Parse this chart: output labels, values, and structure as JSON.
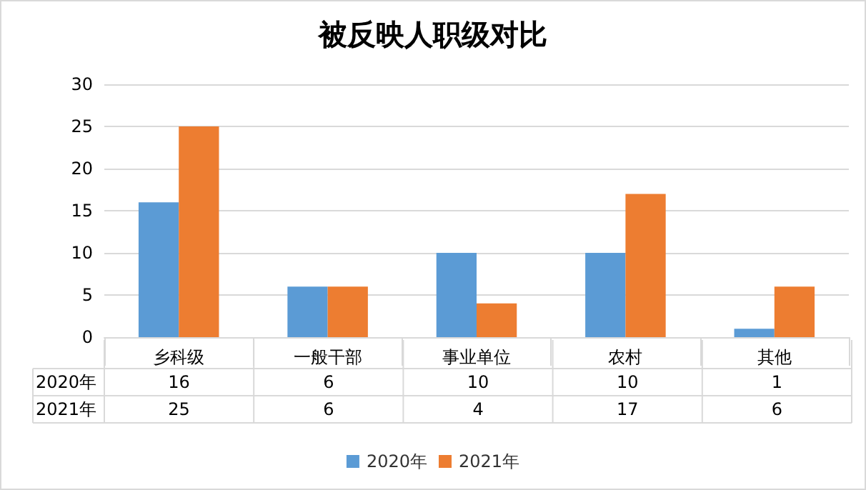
{
  "chart_data": {
    "type": "bar",
    "title": "被反映人职级对比",
    "categories": [
      "乡科级",
      "一般干部",
      "事业单位",
      "农村",
      "其他"
    ],
    "series": [
      {
        "name": "2020年",
        "color": "#5b9bd5",
        "values": [
          16,
          6,
          10,
          10,
          1
        ]
      },
      {
        "name": "2021年",
        "color": "#ed7d31",
        "values": [
          25,
          6,
          4,
          17,
          6
        ]
      }
    ],
    "ylim": [
      0,
      30
    ],
    "yticks": [
      0,
      5,
      10,
      15,
      20,
      25,
      30
    ],
    "grid": "y",
    "legend": "bottom",
    "data_labels": true
  }
}
